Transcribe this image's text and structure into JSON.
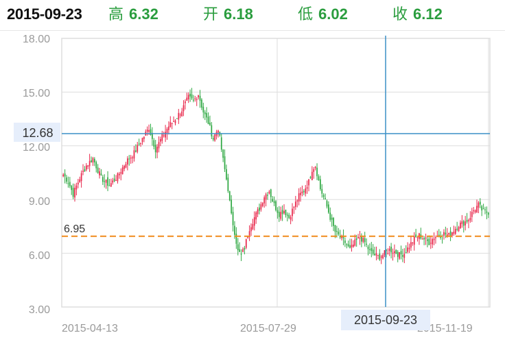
{
  "header": {
    "date": "2015-09-23",
    "high_label": "高",
    "high": "6.32",
    "open_label": "开",
    "open": "6.18",
    "low_label": "低",
    "low": "6.02",
    "close_label": "收",
    "close": "6.12"
  },
  "chart_data": {
    "type": "candlestick",
    "ylim": [
      3.0,
      18.0
    ],
    "y_ticks": [
      "18.00",
      "15.00",
      "12.00",
      "9.00",
      "6.00",
      "3.00"
    ],
    "x_tick_labels": [
      "2015-04-13",
      "2015-07-29",
      "2015-11-19"
    ],
    "crosshair": {
      "price": "12.68",
      "date": "2015-09-23"
    },
    "reference_line": {
      "label": "6.95",
      "value": 6.95
    },
    "colors": {
      "up": "#e8264a",
      "down": "#2fa843",
      "crosshair": "#3a8fc6",
      "reference": "#f08a1c",
      "grid": "#dddddd"
    },
    "key_points": [
      [
        0,
        10.4
      ],
      [
        3,
        10.0
      ],
      [
        6,
        9.3
      ],
      [
        10,
        10.2
      ],
      [
        14,
        10.9
      ],
      [
        18,
        11.3
      ],
      [
        23,
        10.2
      ],
      [
        28,
        9.8
      ],
      [
        33,
        10.3
      ],
      [
        38,
        11.1
      ],
      [
        43,
        11.6
      ],
      [
        48,
        12.4
      ],
      [
        52,
        13.0
      ],
      [
        56,
        11.8
      ],
      [
        60,
        12.5
      ],
      [
        64,
        13.1
      ],
      [
        68,
        13.5
      ],
      [
        72,
        14.0
      ],
      [
        76,
        14.7
      ],
      [
        79,
        14.5
      ],
      [
        82,
        14.9
      ],
      [
        85,
        13.9
      ],
      [
        88,
        13.3
      ],
      [
        91,
        12.4
      ],
      [
        94,
        13.0
      ],
      [
        97,
        11.2
      ],
      [
        100,
        9.6
      ],
      [
        102,
        8.1
      ],
      [
        104,
        7.2
      ],
      [
        106,
        6.1
      ],
      [
        108,
        5.9
      ],
      [
        110,
        6.3
      ],
      [
        113,
        7.4
      ],
      [
        116,
        8.0
      ],
      [
        119,
        8.5
      ],
      [
        122,
        9.2
      ],
      [
        125,
        9.5
      ],
      [
        128,
        8.7
      ],
      [
        131,
        8.2
      ],
      [
        134,
        8.4
      ],
      [
        137,
        8.0
      ],
      [
        140,
        8.6
      ],
      [
        143,
        9.2
      ],
      [
        146,
        9.5
      ],
      [
        149,
        10.0
      ],
      [
        151,
        10.7
      ],
      [
        153,
        10.9
      ],
      [
        156,
        9.6
      ],
      [
        159,
        8.9
      ],
      [
        162,
        8.0
      ],
      [
        165,
        7.2
      ],
      [
        168,
        6.9
      ],
      [
        171,
        6.6
      ],
      [
        174,
        6.2
      ],
      [
        177,
        6.6
      ],
      [
        180,
        6.9
      ],
      [
        183,
        6.6
      ],
      [
        186,
        6.1
      ],
      [
        189,
        5.9
      ],
      [
        192,
        5.8
      ],
      [
        195,
        6.0
      ],
      [
        198,
        6.2
      ],
      [
        201,
        6.1
      ],
      [
        204,
        5.9
      ],
      [
        207,
        6.0
      ],
      [
        210,
        6.4
      ],
      [
        213,
        6.8
      ],
      [
        216,
        7.0
      ],
      [
        219,
        6.8
      ],
      [
        222,
        6.6
      ],
      [
        225,
        6.9
      ],
      [
        228,
        7.0
      ],
      [
        231,
        7.1
      ],
      [
        234,
        7.0
      ],
      [
        237,
        7.3
      ],
      [
        240,
        7.6
      ],
      [
        243,
        7.7
      ],
      [
        246,
        7.9
      ],
      [
        249,
        8.4
      ],
      [
        252,
        8.7
      ],
      [
        255,
        8.3
      ],
      [
        258,
        8.3
      ]
    ]
  }
}
